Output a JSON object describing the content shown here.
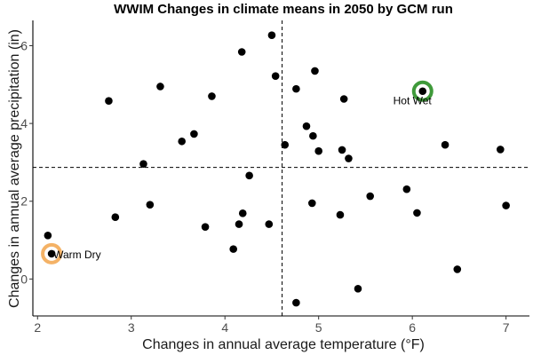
{
  "chart_data": {
    "type": "scatter",
    "title": "WWIM Changes in climate means in 2050 by GCM run",
    "xlabel": "Changes in annual average temperature (°F)",
    "ylabel": "Changes in annual average precipitation (in)",
    "xlim": [
      1.95,
      7.25
    ],
    "ylim": [
      -0.95,
      6.65
    ],
    "xticks": [
      2,
      3,
      4,
      5,
      6,
      7
    ],
    "yticks": [
      0,
      2,
      4,
      6
    ],
    "grid": false,
    "reference_lines": {
      "x": 4.61,
      "y": 2.87
    },
    "points": [
      {
        "x": 2.11,
        "y": 1.12
      },
      {
        "x": 2.15,
        "y": 0.65
      },
      {
        "x": 2.76,
        "y": 4.58
      },
      {
        "x": 2.83,
        "y": 1.59
      },
      {
        "x": 3.13,
        "y": 2.96
      },
      {
        "x": 3.2,
        "y": 1.91
      },
      {
        "x": 3.31,
        "y": 4.95
      },
      {
        "x": 3.54,
        "y": 3.54
      },
      {
        "x": 3.67,
        "y": 3.73
      },
      {
        "x": 3.79,
        "y": 1.34
      },
      {
        "x": 3.86,
        "y": 4.7
      },
      {
        "x": 4.09,
        "y": 0.77
      },
      {
        "x": 4.15,
        "y": 1.41
      },
      {
        "x": 4.18,
        "y": 5.84
      },
      {
        "x": 4.19,
        "y": 1.69
      },
      {
        "x": 4.26,
        "y": 2.66
      },
      {
        "x": 4.47,
        "y": 1.41
      },
      {
        "x": 4.5,
        "y": 6.27
      },
      {
        "x": 4.54,
        "y": 5.22
      },
      {
        "x": 4.64,
        "y": 3.45
      },
      {
        "x": 4.76,
        "y": -0.61
      },
      {
        "x": 4.76,
        "y": 4.89
      },
      {
        "x": 4.87,
        "y": 3.93
      },
      {
        "x": 4.93,
        "y": 1.95
      },
      {
        "x": 4.94,
        "y": 3.68
      },
      {
        "x": 4.96,
        "y": 5.35
      },
      {
        "x": 5.0,
        "y": 3.29
      },
      {
        "x": 5.23,
        "y": 1.65
      },
      {
        "x": 5.25,
        "y": 3.32
      },
      {
        "x": 5.27,
        "y": 4.63
      },
      {
        "x": 5.32,
        "y": 3.1
      },
      {
        "x": 5.42,
        "y": -0.25
      },
      {
        "x": 5.55,
        "y": 2.13
      },
      {
        "x": 5.94,
        "y": 2.31
      },
      {
        "x": 6.05,
        "y": 1.7
      },
      {
        "x": 6.11,
        "y": 4.83
      },
      {
        "x": 6.35,
        "y": 3.45
      },
      {
        "x": 6.48,
        "y": 0.25
      },
      {
        "x": 6.94,
        "y": 3.33
      },
      {
        "x": 7.0,
        "y": 1.89
      }
    ],
    "highlights": [
      {
        "label": "Warm Dry",
        "x": 2.15,
        "y": 0.65,
        "color": "#F4B266",
        "label_position": "right"
      },
      {
        "label": "Hot Wet",
        "x": 6.11,
        "y": 4.83,
        "color": "#3F9A3A",
        "label_position": "below-left"
      }
    ]
  }
}
